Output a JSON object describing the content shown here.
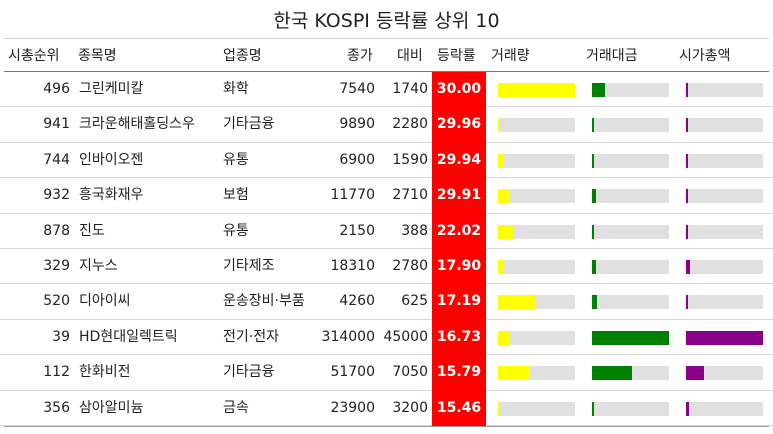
{
  "title": "한국 KOSPI 등락률 상위 10",
  "columns": {
    "rank": "시총순위",
    "name": "종목명",
    "sector": "업종명",
    "close": "종가",
    "change": "대비",
    "rate": "등락률",
    "volume": "거래량",
    "amount": "거래대금",
    "mcap": "시가총액"
  },
  "colors": {
    "rate_bg": "#ff0000",
    "volume": "#ffff00",
    "amount": "#008000",
    "mcap": "#8b008b",
    "bar_bg": "#e0e0e0"
  },
  "rows": [
    {
      "rank": "496",
      "name": "그린케미칼",
      "sector": "화학",
      "close": "7540",
      "change": "1740",
      "rate": "30.00",
      "volume": 1.0,
      "amount": 0.17,
      "mcap": 0.03
    },
    {
      "rank": "941",
      "name": "크라운해태홀딩스우",
      "sector": "기타금융",
      "close": "9890",
      "change": "2280",
      "rate": "29.96",
      "volume": 0.02,
      "amount": 0.02,
      "mcap": 0.01
    },
    {
      "rank": "744",
      "name": "인바이오젠",
      "sector": "유통",
      "close": "6900",
      "change": "1590",
      "rate": "29.94",
      "volume": 0.06,
      "amount": 0.02,
      "mcap": 0.02
    },
    {
      "rank": "932",
      "name": "흥국화재우",
      "sector": "보험",
      "close": "11770",
      "change": "2710",
      "rate": "29.91",
      "volume": 0.15,
      "amount": 0.05,
      "mcap": 0.02
    },
    {
      "rank": "878",
      "name": "진도",
      "sector": "유통",
      "close": "2150",
      "change": "388",
      "rate": "22.02",
      "volume": 0.19,
      "amount": 0.02,
      "mcap": 0.02
    },
    {
      "rank": "329",
      "name": "지누스",
      "sector": "기타제조",
      "close": "18310",
      "change": "2780",
      "rate": "17.90",
      "volume": 0.08,
      "amount": 0.05,
      "mcap": 0.05
    },
    {
      "rank": "520",
      "name": "디아이씨",
      "sector": "운송장비·부품",
      "close": "4260",
      "change": "625",
      "rate": "17.19",
      "volume": 0.48,
      "amount": 0.06,
      "mcap": 0.02
    },
    {
      "rank": "39",
      "name": "HD현대일렉트릭",
      "sector": "전기·전자",
      "close": "314000",
      "change": "45000",
      "rate": "16.73",
      "volume": 0.15,
      "amount": 1.0,
      "mcap": 1.0
    },
    {
      "rank": "112",
      "name": "한화비전",
      "sector": "기타금융",
      "close": "51700",
      "change": "7050",
      "rate": "15.79",
      "volume": 0.41,
      "amount": 0.52,
      "mcap": 0.23
    },
    {
      "rank": "356",
      "name": "삼아알미늄",
      "sector": "금속",
      "close": "23900",
      "change": "3200",
      "rate": "15.46",
      "volume": 0.02,
      "amount": 0.02,
      "mcap": 0.04
    }
  ]
}
